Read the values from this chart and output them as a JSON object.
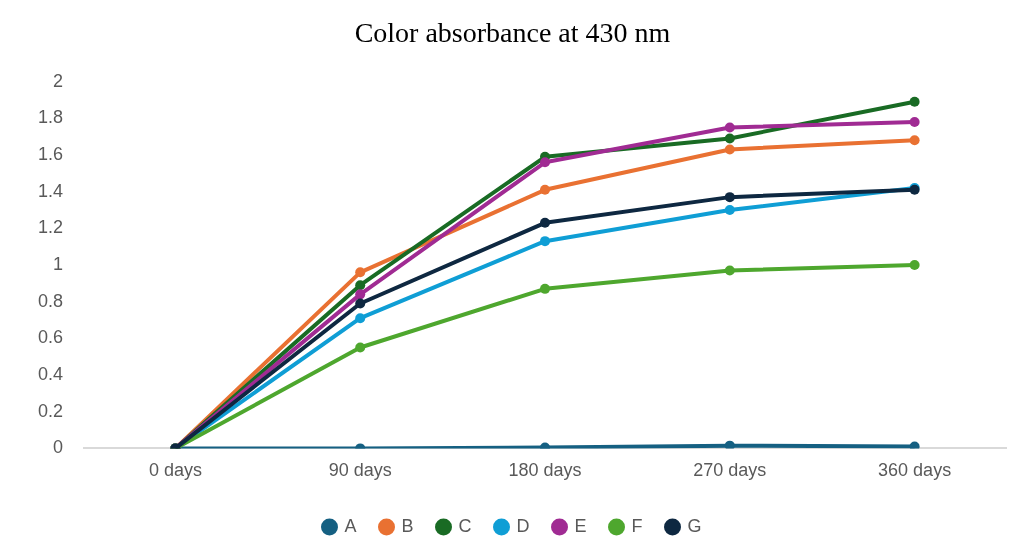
{
  "chart_data": {
    "type": "line",
    "title": "Color absorbance at 430 nm",
    "categories": [
      "0 days",
      "90 days",
      "180 days",
      "270 days",
      "360 days"
    ],
    "ylim": [
      0,
      2
    ],
    "yticks": [
      0,
      0.2,
      0.4,
      0.6,
      0.8,
      1,
      1.2,
      1.4,
      1.6,
      1.8,
      2
    ],
    "grid": false,
    "legend": "bottom",
    "marker": "circle",
    "line_style": "solid",
    "series": [
      {
        "name": "A",
        "color": "#156082",
        "values": [
          0,
          0,
          0.005,
          0.015,
          0.01
        ]
      },
      {
        "name": "B",
        "color": "#e97132",
        "values": [
          0,
          0.96,
          1.41,
          1.63,
          1.68
        ]
      },
      {
        "name": "C",
        "color": "#196b24",
        "values": [
          0,
          0.89,
          1.59,
          1.69,
          1.89
        ]
      },
      {
        "name": "D",
        "color": "#0f9ed5",
        "values": [
          0,
          0.71,
          1.13,
          1.3,
          1.42
        ]
      },
      {
        "name": "E",
        "color": "#a02b93",
        "values": [
          0,
          0.84,
          1.56,
          1.75,
          1.78
        ]
      },
      {
        "name": "F",
        "color": "#4ea72e",
        "values": [
          0,
          0.55,
          0.87,
          0.97,
          1
        ]
      },
      {
        "name": "G",
        "color": "#0e2841",
        "values": [
          0,
          0.79,
          1.23,
          1.37,
          1.41
        ]
      }
    ]
  }
}
